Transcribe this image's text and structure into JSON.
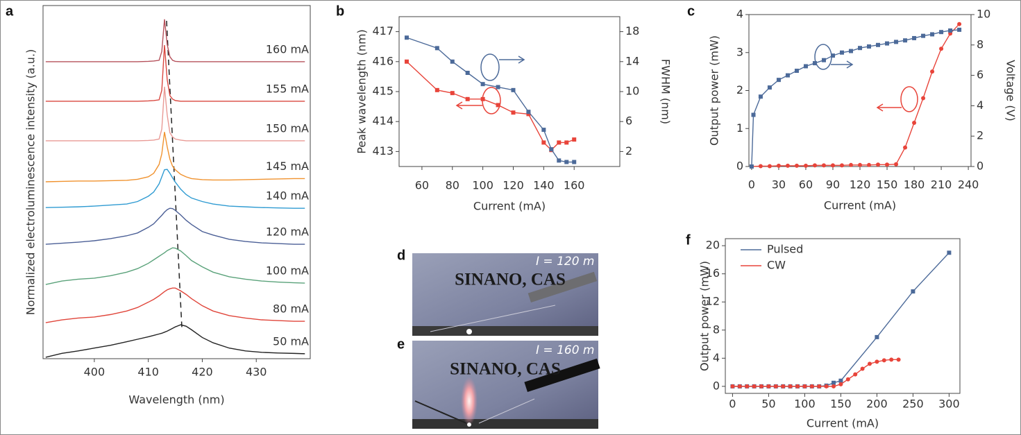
{
  "panel_labels": [
    "a",
    "b",
    "c",
    "d",
    "e",
    "f"
  ],
  "photos": [
    {
      "caption": "SINANO, CAS",
      "current": "I = 120 m"
    },
    {
      "caption": "SINANO, CAS",
      "current": "I = 160 m"
    }
  ],
  "chart_data": [
    {
      "type": "line",
      "xlabel": "Wavelength (nm)",
      "ylabel": "Normalized electroluminescence intensity (a.u.)",
      "xlim": [
        390.5,
        440
      ],
      "xticks": [
        400,
        410,
        420,
        430
      ],
      "ylim": [
        0,
        10
      ],
      "x": [
        391,
        394,
        397,
        400,
        403,
        406,
        408,
        410,
        411,
        412,
        412.5,
        413,
        413.5,
        414,
        414.5,
        415,
        416,
        417,
        418,
        420,
        422,
        425,
        428,
        431,
        434,
        437,
        439
      ],
      "series": [
        {
          "name": "160 mA",
          "color": "#b5505a",
          "values": [
            8.41,
            8.41,
            8.41,
            8.41,
            8.41,
            8.41,
            8.41,
            8.42,
            8.43,
            8.45,
            8.7,
            9.61,
            8.9,
            8.55,
            8.45,
            8.42,
            8.41,
            8.41,
            8.41,
            8.41,
            8.41,
            8.41,
            8.41,
            8.41,
            8.41,
            8.41,
            8.41
          ]
        },
        {
          "name": "155 mA",
          "color": "#d9473f",
          "values": [
            7.29,
            7.29,
            7.29,
            7.29,
            7.29,
            7.29,
            7.29,
            7.3,
            7.31,
            7.33,
            7.6,
            8.88,
            7.9,
            7.45,
            7.35,
            7.31,
            7.29,
            7.29,
            7.29,
            7.29,
            7.29,
            7.29,
            7.29,
            7.29,
            7.29,
            7.29,
            7.29
          ]
        },
        {
          "name": "150 mA",
          "color": "#e99a95",
          "values": [
            6.17,
            6.17,
            6.17,
            6.17,
            6.17,
            6.17,
            6.17,
            6.18,
            6.19,
            6.22,
            6.5,
            7.7,
            6.9,
            6.4,
            6.28,
            6.22,
            6.19,
            6.17,
            6.17,
            6.17,
            6.17,
            6.17,
            6.17,
            6.17,
            6.17,
            6.17,
            6.17
          ]
        },
        {
          "name": "145 mA",
          "color": "#f0922e",
          "values": [
            5.01,
            5.02,
            5.03,
            5.03,
            5.04,
            5.05,
            5.08,
            5.15,
            5.25,
            5.5,
            5.8,
            6.42,
            6.0,
            5.65,
            5.45,
            5.35,
            5.22,
            5.15,
            5.1,
            5.07,
            5.06,
            5.06,
            5.07,
            5.08,
            5.09,
            5.1,
            5.1
          ]
        },
        {
          "name": "140 mA",
          "color": "#2f9bd2",
          "values": [
            4.28,
            4.29,
            4.3,
            4.32,
            4.35,
            4.38,
            4.45,
            4.6,
            4.72,
            4.95,
            5.15,
            5.35,
            5.36,
            5.25,
            5.12,
            5.0,
            4.8,
            4.65,
            4.55,
            4.45,
            4.38,
            4.32,
            4.3,
            4.28,
            4.27,
            4.26,
            4.26
          ]
        },
        {
          "name": "120 mA",
          "color": "#4b5f96",
          "values": [
            3.24,
            3.27,
            3.3,
            3.34,
            3.4,
            3.48,
            3.56,
            3.72,
            3.82,
            3.98,
            4.06,
            4.15,
            4.22,
            4.26,
            4.25,
            4.2,
            4.07,
            3.92,
            3.8,
            3.6,
            3.5,
            3.38,
            3.32,
            3.28,
            3.26,
            3.24,
            3.24
          ]
        },
        {
          "name": "100 mA",
          "color": "#5aa27a",
          "values": [
            2.1,
            2.2,
            2.25,
            2.28,
            2.35,
            2.45,
            2.55,
            2.7,
            2.8,
            2.9,
            2.95,
            3.0,
            3.06,
            3.1,
            3.14,
            3.13,
            3.05,
            2.92,
            2.78,
            2.6,
            2.45,
            2.32,
            2.25,
            2.2,
            2.17,
            2.15,
            2.14
          ]
        },
        {
          "name": "80 mA",
          "color": "#e0453a",
          "values": [
            1.02,
            1.1,
            1.15,
            1.18,
            1.25,
            1.35,
            1.45,
            1.6,
            1.68,
            1.78,
            1.84,
            1.9,
            1.95,
            1.98,
            2.0,
            2.0,
            1.92,
            1.82,
            1.7,
            1.5,
            1.35,
            1.22,
            1.15,
            1.1,
            1.08,
            1.06,
            1.06
          ]
        },
        {
          "name": "50 mA",
          "color": "#222222",
          "values": [
            0.04,
            0.15,
            0.22,
            0.3,
            0.38,
            0.48,
            0.55,
            0.62,
            0.66,
            0.7,
            0.72,
            0.75,
            0.78,
            0.82,
            0.86,
            0.9,
            0.96,
            0.92,
            0.82,
            0.6,
            0.45,
            0.3,
            0.22,
            0.18,
            0.16,
            0.15,
            0.14
          ]
        }
      ]
    },
    {
      "type": "line",
      "xlabel": "Current (mA)",
      "ylabel": "Peak wavelength (nm)",
      "y2label": "FWHM (nm)",
      "xlim": [
        45,
        190
      ],
      "xticks": [
        60,
        80,
        100,
        120,
        140,
        160
      ],
      "ylim": [
        412.5,
        417.5
      ],
      "yticks": [
        413,
        414,
        415,
        416,
        417
      ],
      "y2lim": [
        0,
        20
      ],
      "y2ticks": [
        2,
        6,
        10,
        14,
        18
      ],
      "x": [
        50,
        70,
        80,
        90,
        100,
        110,
        120,
        130,
        140,
        145,
        150,
        155,
        160
      ],
      "series": [
        {
          "color": "#e8443a",
          "marker": "square",
          "values": [
            416.0,
            415.05,
            414.95,
            414.75,
            414.75,
            414.55,
            414.3,
            414.25,
            413.3,
            413.05,
            413.3,
            413.3,
            413.4
          ]
        },
        {
          "color": "#4c6a99",
          "marker": "square",
          "axis": "y2",
          "values": [
            17.2,
            15.8,
            14.0,
            12.5,
            11.0,
            10.6,
            10.2,
            7.3,
            4.9,
            2.3,
            0.8,
            0.6,
            0.6
          ]
        }
      ]
    },
    {
      "type": "line",
      "xlabel": "Current (mA)",
      "ylabel": "Output power (mW)",
      "y2label": "Voltage (V)",
      "xlim": [
        -3,
        243
      ],
      "xticks": [
        0,
        30,
        60,
        90,
        120,
        150,
        180,
        210,
        240
      ],
      "ylim": [
        0,
        4
      ],
      "yticks": [
        0,
        1,
        2,
        3,
        4
      ],
      "y2lim": [
        0,
        10
      ],
      "y2ticks": [
        0,
        2,
        4,
        6,
        8,
        10
      ],
      "series": [
        {
          "color": "#e8443a",
          "marker": "circle",
          "x": [
            0,
            10,
            20,
            30,
            40,
            50,
            60,
            70,
            80,
            90,
            100,
            110,
            120,
            130,
            140,
            150,
            160,
            170,
            180,
            190,
            200,
            210,
            220,
            230
          ],
          "values": [
            0,
            0.01,
            0.01,
            0.02,
            0.02,
            0.02,
            0.02,
            0.03,
            0.03,
            0.03,
            0.03,
            0.04,
            0.04,
            0.04,
            0.05,
            0.05,
            0.06,
            0.5,
            1.15,
            1.8,
            2.5,
            3.1,
            3.5,
            3.75
          ]
        },
        {
          "color": "#4c6a99",
          "marker": "square",
          "axis": "y2",
          "x": [
            0,
            2,
            10,
            20,
            30,
            40,
            50,
            60,
            70,
            80,
            90,
            100,
            110,
            120,
            130,
            140,
            150,
            160,
            170,
            180,
            190,
            200,
            210,
            220,
            230
          ],
          "values": [
            0,
            3.4,
            4.6,
            5.2,
            5.7,
            6.0,
            6.3,
            6.6,
            6.8,
            7.0,
            7.3,
            7.5,
            7.6,
            7.8,
            7.9,
            8.0,
            8.1,
            8.2,
            8.3,
            8.45,
            8.6,
            8.7,
            8.85,
            8.95,
            9.0
          ]
        }
      ]
    },
    {
      "type": "line",
      "xlabel": "Current (mA)",
      "ylabel": "Output power (mW)",
      "legend": "upper left",
      "xlim": [
        -10,
        315
      ],
      "xticks": [
        0,
        50,
        100,
        150,
        200,
        250,
        300
      ],
      "ylim": [
        -1,
        21
      ],
      "yticks": [
        0,
        4,
        8,
        12,
        16,
        20
      ],
      "series": [
        {
          "name": "Pulsed",
          "color": "#4c6a99",
          "marker": "square",
          "x": [
            0,
            10,
            20,
            30,
            40,
            50,
            60,
            70,
            80,
            90,
            100,
            110,
            120,
            130,
            140,
            150,
            200,
            250,
            300
          ],
          "values": [
            0,
            0,
            0,
            0,
            0,
            0,
            0,
            0,
            0,
            0,
            0,
            0,
            0,
            0.1,
            0.5,
            0.8,
            7,
            13.5,
            19
          ]
        },
        {
          "name": "CW",
          "color": "#e8443a",
          "marker": "circle",
          "x": [
            0,
            10,
            20,
            30,
            40,
            50,
            60,
            70,
            80,
            90,
            100,
            110,
            120,
            130,
            140,
            150,
            160,
            170,
            180,
            190,
            200,
            210,
            220,
            230
          ],
          "values": [
            0,
            0,
            0,
            0,
            0,
            0,
            0,
            0,
            0,
            0,
            0,
            0,
            0,
            0,
            0,
            0.3,
            1.0,
            1.7,
            2.5,
            3.2,
            3.5,
            3.7,
            3.8,
            3.8
          ]
        }
      ]
    }
  ]
}
